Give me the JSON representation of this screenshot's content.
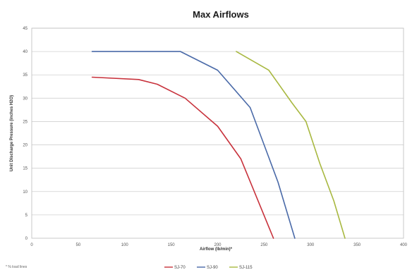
{
  "chart_data": {
    "type": "line",
    "title": "Max Airflows",
    "xlabel": "Airflow (lb/min)*",
    "ylabel": "Unit Discharge Pressure (inches H2O)",
    "xlim": [
      0,
      400
    ],
    "ylim": [
      0,
      45
    ],
    "x_ticks": [
      0,
      50,
      100,
      150,
      200,
      250,
      300,
      350,
      400
    ],
    "y_ticks": [
      0,
      5,
      10,
      15,
      20,
      25,
      30,
      35,
      40,
      45
    ],
    "x_tick_labels": [
      "0",
      "50",
      "100",
      "150",
      "200",
      "250",
      "300",
      "350",
      "400"
    ],
    "y_tick_labels": [
      "0",
      "5",
      "10",
      "15",
      "20",
      "25",
      "30",
      "35",
      "40",
      "45"
    ],
    "grid": true,
    "legend_position": "bottom",
    "footnote": "* % load lines",
    "series": [
      {
        "name": "SJ-70",
        "color": "#c8323c",
        "points": [
          [
            65,
            34.5
          ],
          [
            115,
            34
          ],
          [
            135,
            33
          ],
          [
            165,
            30
          ],
          [
            200,
            24
          ],
          [
            225,
            17
          ],
          [
            260,
            0
          ]
        ]
      },
      {
        "name": "SJ-90",
        "color": "#4a6aa8",
        "points": [
          [
            65,
            40
          ],
          [
            160,
            40
          ],
          [
            200,
            36
          ],
          [
            235,
            28
          ],
          [
            250,
            20
          ],
          [
            265,
            12
          ],
          [
            283,
            0
          ]
        ]
      },
      {
        "name": "SJ-115",
        "color": "#a8b840",
        "points": [
          [
            220,
            40
          ],
          [
            255,
            36
          ],
          [
            280,
            29
          ],
          [
            295,
            25
          ],
          [
            310,
            16
          ],
          [
            325,
            8
          ],
          [
            337,
            0
          ]
        ]
      }
    ]
  }
}
